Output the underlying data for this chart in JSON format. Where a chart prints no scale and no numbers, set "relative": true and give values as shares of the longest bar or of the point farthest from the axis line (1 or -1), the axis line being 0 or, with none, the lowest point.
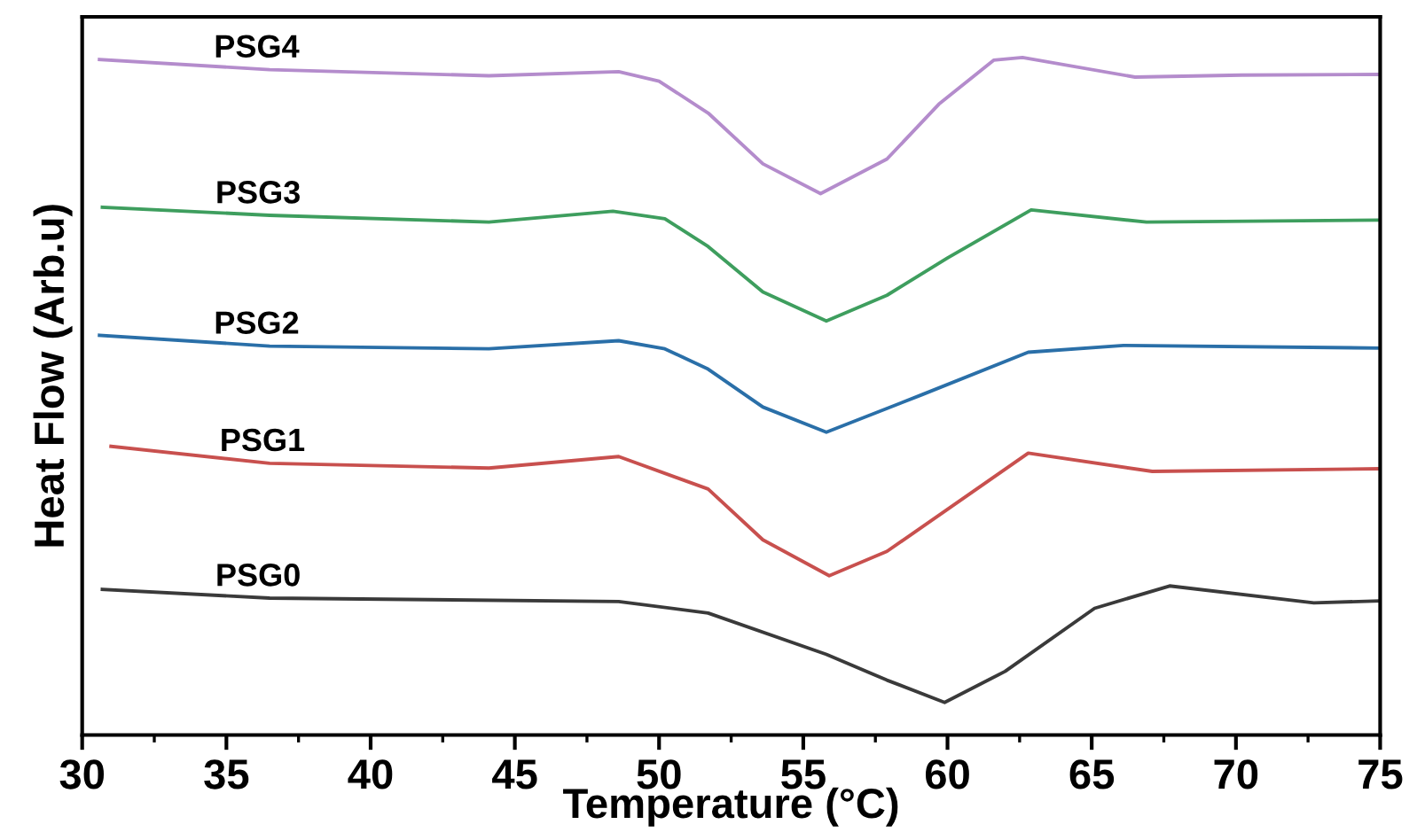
{
  "chart_data": {
    "type": "line",
    "relative": true,
    "xlabel": "Temperature (°C)",
    "ylabel": "Heat Flow (Arb.u)",
    "xlim": [
      30,
      75
    ],
    "xticks": [
      30,
      35,
      40,
      45,
      50,
      55,
      60,
      65,
      70,
      75
    ],
    "grid": false,
    "legend": false,
    "marker": "none",
    "line_style": "solid",
    "series": [
      {
        "name": "PSG0",
        "color": "#3a3a3a",
        "x": [
          30.7,
          36.5,
          48.6,
          51.7,
          55.8,
          57.9,
          59.9,
          62.0,
          65.1,
          67.7,
          72.7,
          75.0
        ],
        "values": [
          0.215,
          0.202,
          0.197,
          0.18,
          0.119,
          0.081,
          0.048,
          0.094,
          0.187,
          0.22,
          0.195,
          0.198
        ]
      },
      {
        "name": "PSG1",
        "color": "#c8504e",
        "x": [
          31.0,
          36.5,
          44.1,
          48.6,
          51.7,
          53.6,
          55.9,
          57.9,
          62.8,
          67.1,
          75.0
        ],
        "values": [
          0.426,
          0.401,
          0.394,
          0.411,
          0.363,
          0.288,
          0.235,
          0.271,
          0.416,
          0.389,
          0.393
        ]
      },
      {
        "name": "PSG2",
        "color": "#2a6fa8",
        "x": [
          30.6,
          36.5,
          44.1,
          48.6,
          50.2,
          51.7,
          53.6,
          55.8,
          59.1,
          62.8,
          66.1,
          75.0
        ],
        "values": [
          0.59,
          0.574,
          0.57,
          0.582,
          0.57,
          0.54,
          0.484,
          0.447,
          0.502,
          0.565,
          0.575,
          0.571
        ]
      },
      {
        "name": "PSG3",
        "color": "#3e9e5e",
        "x": [
          30.7,
          36.5,
          44.1,
          48.4,
          50.2,
          51.7,
          53.6,
          55.8,
          57.9,
          60.0,
          62.9,
          66.9,
          75.0
        ],
        "values": [
          0.779,
          0.767,
          0.757,
          0.773,
          0.762,
          0.721,
          0.654,
          0.611,
          0.649,
          0.704,
          0.775,
          0.757,
          0.76
        ]
      },
      {
        "name": "PSG4",
        "color": "#b48ccc",
        "x": [
          30.6,
          36.5,
          44.1,
          48.6,
          50.0,
          51.7,
          53.6,
          55.6,
          57.9,
          59.7,
          61.6,
          62.6,
          66.5,
          70.2,
          75.0
        ],
        "values": [
          0.997,
          0.982,
          0.973,
          0.979,
          0.965,
          0.918,
          0.843,
          0.799,
          0.85,
          0.931,
          0.996,
          1.0,
          0.971,
          0.974,
          0.975
        ]
      }
    ]
  }
}
